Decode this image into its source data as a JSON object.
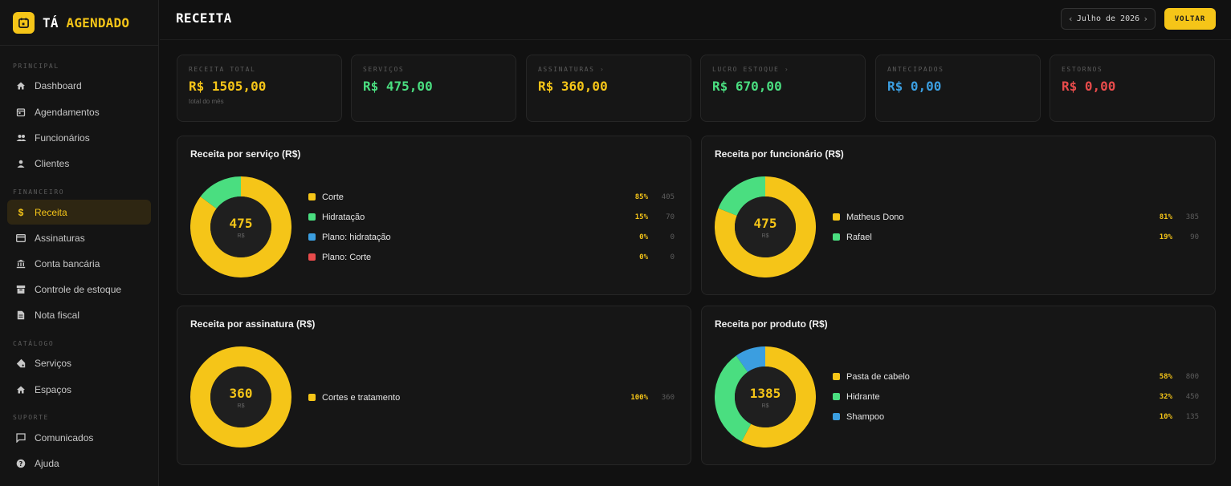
{
  "brand": {
    "name_part1": "TÁ",
    "name_part2": "AGENDADO"
  },
  "sidebar": {
    "sections": {
      "principal": "PRINCIPAL",
      "financeiro": "FINANCEIRO",
      "catalogo": "CATÁLOGO",
      "suporte": "SUPORTE"
    },
    "items": [
      {
        "label": "Dashboard",
        "icon": "home-icon"
      },
      {
        "label": "Agendamentos",
        "icon": "calendar-icon"
      },
      {
        "label": "Funcionários",
        "icon": "people-icon"
      },
      {
        "label": "Clientes",
        "icon": "person-icon"
      },
      {
        "label": "Receita",
        "icon": "dollar-icon",
        "active": true
      },
      {
        "label": "Assinaturas",
        "icon": "card-icon"
      },
      {
        "label": "Conta bancária",
        "icon": "bank-icon"
      },
      {
        "label": "Controle de estoque",
        "icon": "archive-icon"
      },
      {
        "label": "Nota fiscal",
        "icon": "document-icon"
      },
      {
        "label": "Serviços",
        "icon": "tag-icon"
      },
      {
        "label": "Espaços",
        "icon": "home-icon"
      },
      {
        "label": "Comunicados",
        "icon": "chat-icon"
      },
      {
        "label": "Ajuda",
        "icon": "help-icon"
      }
    ]
  },
  "header": {
    "title": "RECEITA",
    "month": "Julho de 2026",
    "back_label": "VOLTAR"
  },
  "stats": [
    {
      "label": "RECEITA TOTAL",
      "value": "R$ 1505,00",
      "sub": "total do mês",
      "color": "#f5c518"
    },
    {
      "label": "SERVIÇOS",
      "value": "R$ 475,00",
      "color": "#4ade80"
    },
    {
      "label": "ASSINATURAS ›",
      "value": "R$ 360,00",
      "color": "#f5c518"
    },
    {
      "label": "LUCRO ESTOQUE ›",
      "value": "R$ 670,00",
      "color": "#4ade80"
    },
    {
      "label": "ANTECIPADOS",
      "value": "R$ 0,00",
      "color": "#3b9ee0"
    },
    {
      "label": "ESTORNOS",
      "value": "R$ 0,00",
      "color": "#e84b4b"
    }
  ],
  "chart_data": [
    {
      "type": "pie",
      "title": "Receita por serviço (R$)",
      "center_value": "475",
      "center_unit": "R$",
      "categories": [
        "Corte",
        "Hidratação",
        "Plano: hidratação",
        "Plano: Corte"
      ],
      "values": [
        405,
        70,
        0,
        0
      ],
      "percent_labels": [
        "85%",
        "15%",
        "0%",
        "0%"
      ],
      "colors": [
        "#f5c518",
        "#4ade80",
        "#3b9ee0",
        "#e84b4b"
      ]
    },
    {
      "type": "pie",
      "title": "Receita por funcionário (R$)",
      "center_value": "475",
      "center_unit": "R$",
      "categories": [
        "Matheus Dono",
        "Rafael"
      ],
      "values": [
        385,
        90
      ],
      "percent_labels": [
        "81%",
        "19%"
      ],
      "colors": [
        "#f5c518",
        "#4ade80"
      ]
    },
    {
      "type": "pie",
      "title": "Receita por assinatura (R$)",
      "center_value": "360",
      "center_unit": "R$",
      "categories": [
        "Cortes e tratamento"
      ],
      "values": [
        360
      ],
      "percent_labels": [
        "100%"
      ],
      "colors": [
        "#f5c518"
      ]
    },
    {
      "type": "pie",
      "title": "Receita por produto (R$)",
      "center_value": "1385",
      "center_unit": "R$",
      "categories": [
        "Pasta de cabelo",
        "Hidrante",
        "Shampoo"
      ],
      "values": [
        800,
        450,
        135
      ],
      "percent_labels": [
        "58%",
        "32%",
        "10%"
      ],
      "colors": [
        "#f5c518",
        "#4ade80",
        "#3b9ee0"
      ]
    }
  ]
}
